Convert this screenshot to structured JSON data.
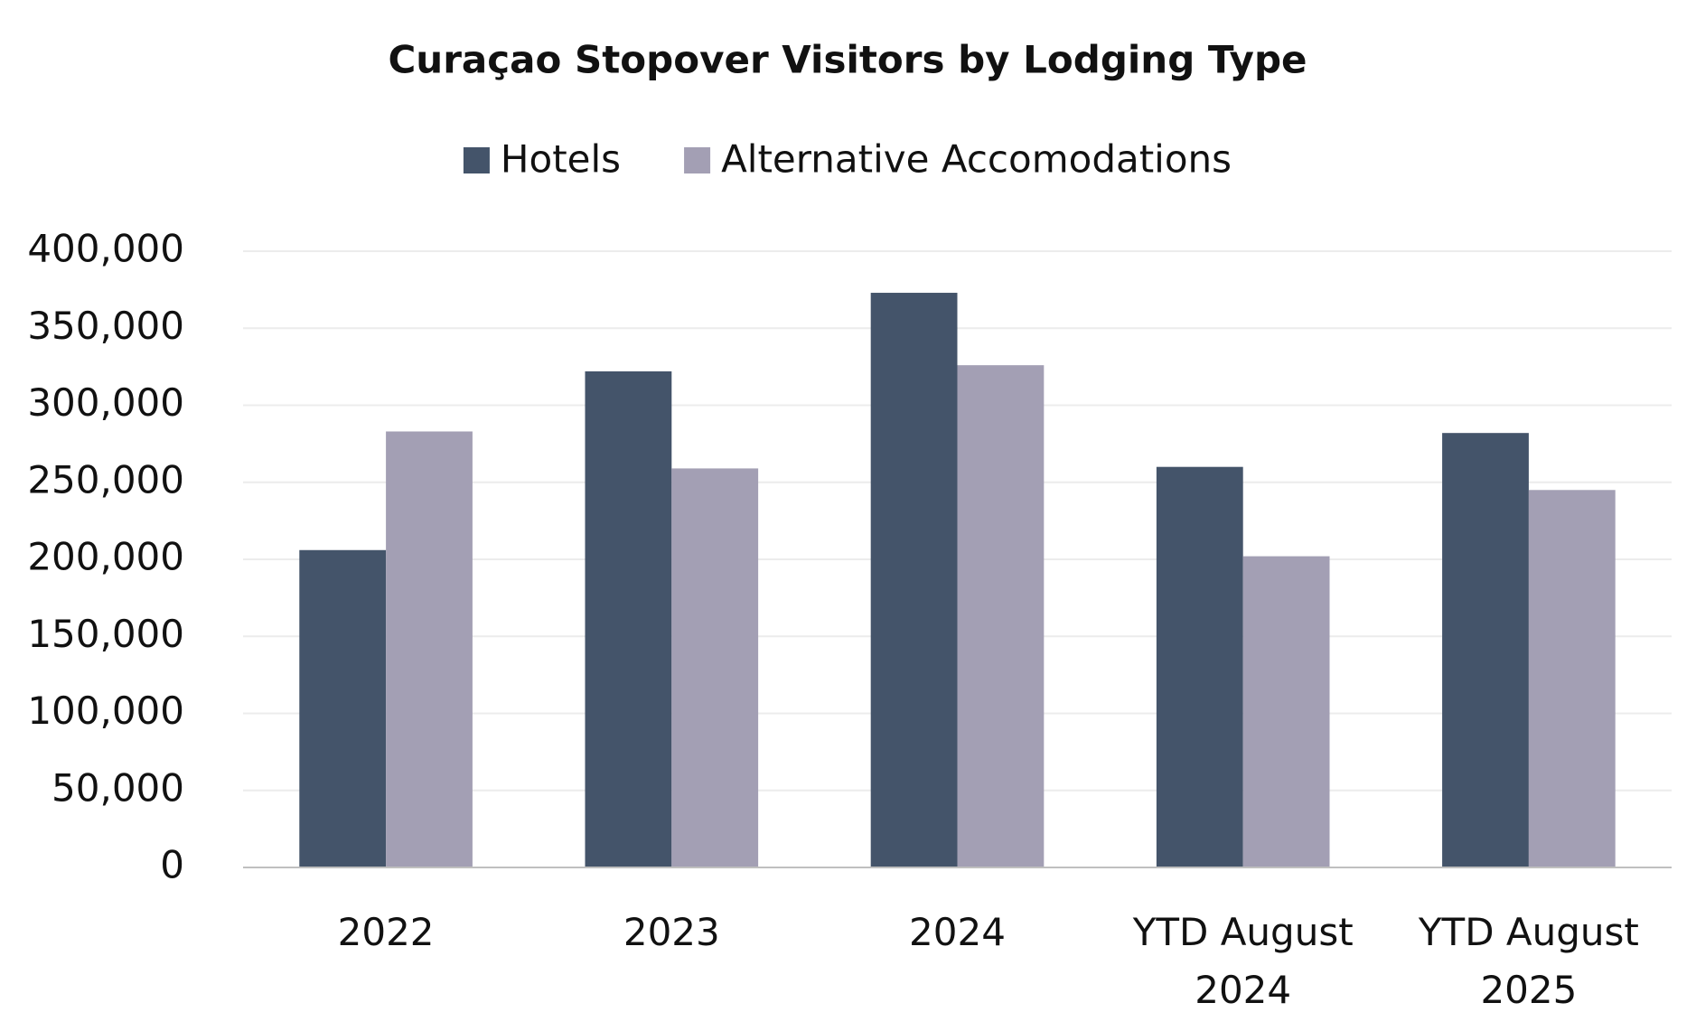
{
  "chart_data": {
    "type": "bar",
    "title": "Curaçao Stopover Visitors by Lodging Type",
    "categories": [
      "2022",
      "2023",
      "2024",
      "YTD August 2024",
      "YTD August 2025"
    ],
    "series": [
      {
        "name": "Hotels",
        "color": "#44546a",
        "values": [
          206000,
          322000,
          373000,
          260000,
          282000
        ]
      },
      {
        "name": "Alternative Accomodations",
        "color": "#a39fb4",
        "values": [
          283000,
          259000,
          326000,
          202000,
          245000
        ]
      }
    ],
    "ylim": [
      0,
      400000
    ],
    "yticks": [
      {
        "value": 0,
        "label": "0"
      },
      {
        "value": 50000,
        "label": "50,000"
      },
      {
        "value": 100000,
        "label": "100,000"
      },
      {
        "value": 150000,
        "label": "150,000"
      },
      {
        "value": 200000,
        "label": "200,000"
      },
      {
        "value": 250000,
        "label": "250,000"
      },
      {
        "value": 300000,
        "label": "300,000"
      },
      {
        "value": 350000,
        "label": "350,000"
      },
      {
        "value": 400000,
        "label": "400,000"
      }
    ],
    "grid": true,
    "legend": "top"
  }
}
